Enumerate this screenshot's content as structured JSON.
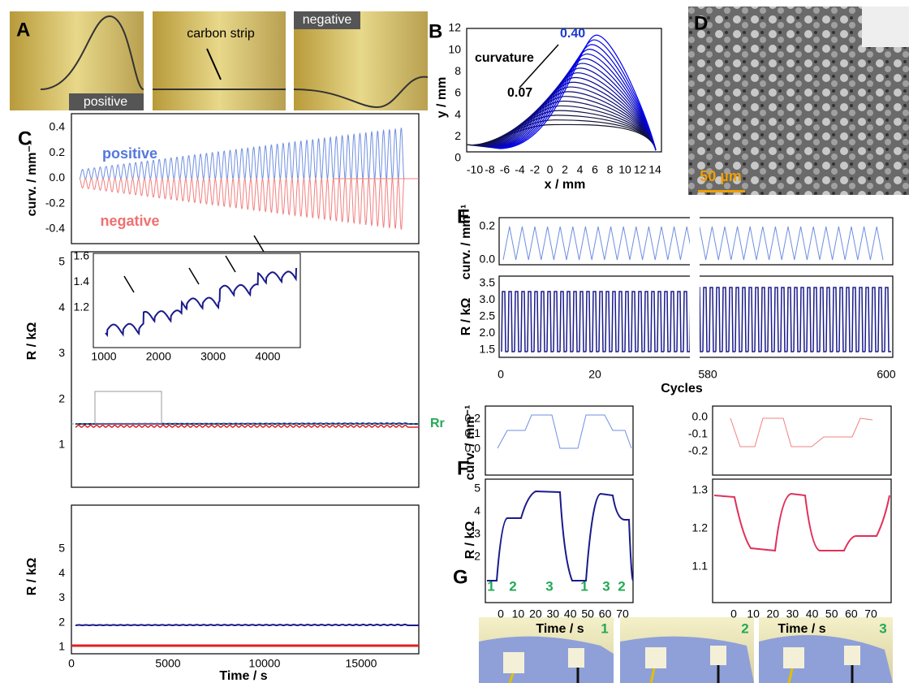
{
  "panels": {
    "A": {
      "label": "A",
      "photo_labels": [
        "positive",
        "carbon strip",
        "negative"
      ]
    },
    "B": {
      "label": "B",
      "y_label": "y / mm",
      "x_label": "x / mm",
      "annotation": "curvature",
      "low": "0.07",
      "high": "0.40",
      "yticks": [
        "0",
        "2",
        "4",
        "6",
        "8",
        "10",
        "12"
      ],
      "xticks": [
        "-10",
        "-8",
        "-6",
        "-4",
        "-2",
        "0",
        "2",
        "4",
        "6",
        "8",
        "10",
        "12",
        "14"
      ]
    },
    "C": {
      "label": "C",
      "positive": "positive",
      "negative": "negative",
      "curv_label": "curv. / mm⁻¹",
      "curv_ticks": [
        "-0.4",
        "-0.2",
        "0.0",
        "0.2",
        "0.4"
      ],
      "r_label": "R / kΩ",
      "r_ticks": [
        "1",
        "2",
        "3",
        "4",
        "5"
      ],
      "rr": "Rr",
      "inset_yticks": [
        "1.2",
        "1.4",
        "1.6"
      ],
      "inset_xticks": [
        "1000",
        "2000",
        "3000",
        "4000"
      ],
      "r2_label": "R / kΩ",
      "r2_ticks": [
        "1",
        "2",
        "3",
        "4",
        "5"
      ],
      "xticks": [
        "0",
        "5000",
        "10000",
        "15000"
      ],
      "x_label": "Time / s"
    },
    "D": {
      "label": "D",
      "scale": "50 µm"
    },
    "E": {
      "label": "E",
      "curv_label": "curv. / mm⁻¹",
      "curv_ticks": [
        "0.0",
        "0.2"
      ],
      "r_label": "R / kΩ",
      "r_ticks": [
        "1.5",
        "2.0",
        "2.5",
        "3.0",
        "3.5"
      ],
      "xticks": [
        "0",
        "20",
        "580",
        "600"
      ],
      "x_label": "Cycles"
    },
    "F": {
      "label": "F",
      "curv_label": "curv. / mm⁻¹",
      "r_label": "R / kΩ",
      "left_curv_ticks": [
        "0.0",
        "0.1",
        "0.2"
      ],
      "left_r_ticks": [
        "2",
        "3",
        "4",
        "5"
      ],
      "right_curv_ticks": [
        "-0.2",
        "-0.1",
        "0.0"
      ],
      "right_r_ticks": [
        "1.1",
        "1.2",
        "1.3"
      ],
      "xticks": [
        "0",
        "10",
        "20",
        "30",
        "40",
        "50",
        "60",
        "70"
      ],
      "x_label": "Time / s",
      "stages": [
        "1",
        "2",
        "3",
        "1",
        "3",
        "2"
      ]
    },
    "G": {
      "label": "G",
      "photo_numbers": [
        "1",
        "2",
        "3"
      ]
    }
  }
}
